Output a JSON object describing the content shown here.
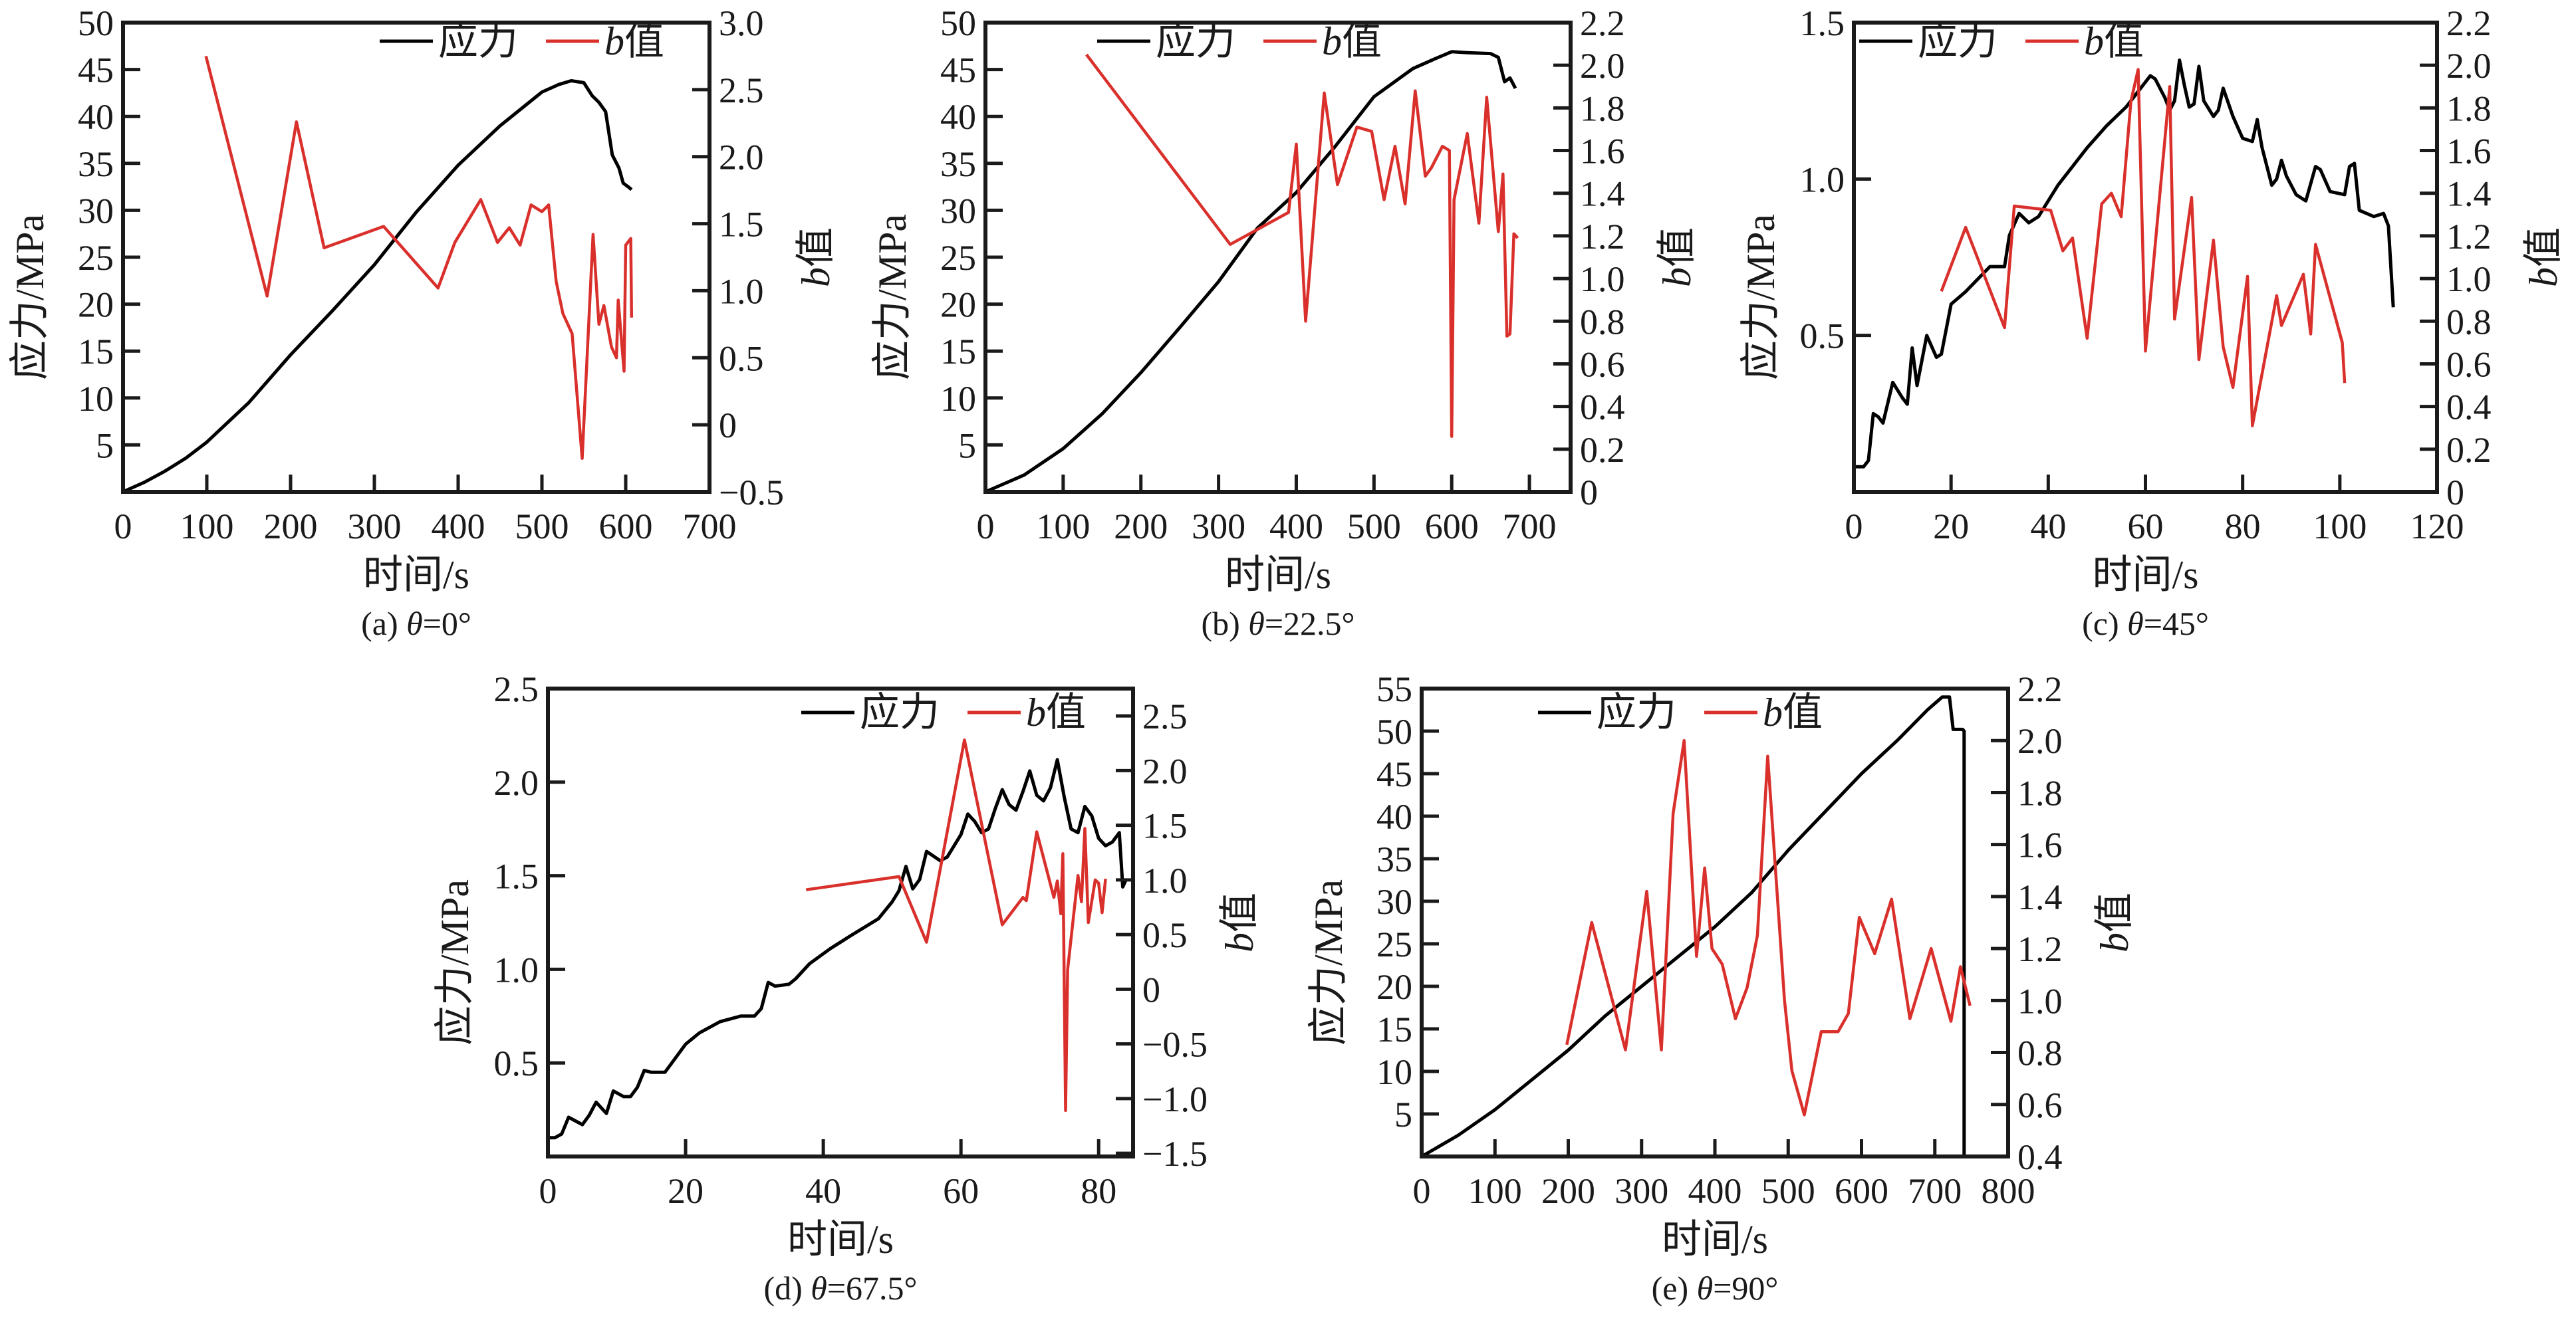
{
  "chart_data": [
    {
      "type": "line",
      "caption": "(a) θ=0°",
      "xlabel": "时间/s",
      "ylabel": "应力/MPa",
      "y2label": "b值",
      "xlim": [
        0,
        700
      ],
      "ylim": [
        0,
        50
      ],
      "y2lim": [
        -0.5,
        3.0
      ],
      "xticks": [
        0,
        100,
        200,
        300,
        400,
        500,
        600,
        700
      ],
      "xtick_labels": [
        "0",
        "100",
        "200",
        "300",
        "400",
        "500",
        "600",
        "700"
      ],
      "yticks": [
        5,
        10,
        15,
        20,
        25,
        30,
        35,
        40,
        45,
        50
      ],
      "ytick_labels": [
        "5",
        "10",
        "15",
        "20",
        "25",
        "30",
        "35",
        "40",
        "45",
        "50"
      ],
      "y2ticks": [
        -0.5,
        0,
        0.5,
        1.0,
        1.5,
        2.0,
        2.5,
        3.0
      ],
      "y2tick_labels": [
        "−0.5",
        "0",
        "0.5",
        "1.0",
        "1.5",
        "2.0",
        "2.5",
        "3.0"
      ],
      "legend": "top-right",
      "series": [
        {
          "name": "应力",
          "axis": "left",
          "color": "#000000",
          "x": [
            0,
            25,
            50,
            75,
            100,
            150,
            200,
            250,
            300,
            350,
            400,
            450,
            500,
            520,
            535,
            550,
            560,
            568,
            576,
            584,
            592,
            597,
            603,
            607
          ],
          "y": [
            0,
            1,
            2.2,
            3.6,
            5.3,
            9.5,
            14.6,
            19.3,
            24.2,
            29.8,
            34.8,
            39.0,
            42.6,
            43.4,
            43.8,
            43.6,
            42.2,
            41.5,
            40.5,
            35.9,
            34.5,
            32.9,
            32.5,
            32.2
          ]
        },
        {
          "name": "b值",
          "axis": "right",
          "color": "#d9302c",
          "x": [
            99,
            172,
            207,
            240,
            311,
            376,
            396,
            427,
            447,
            461,
            474,
            487,
            500,
            508,
            517,
            525,
            536,
            548,
            561,
            568,
            574,
            583,
            589,
            591,
            598,
            600,
            606,
            607
          ],
          "y": [
            2.75,
            0.96,
            2.26,
            1.32,
            1.48,
            1.02,
            1.36,
            1.68,
            1.36,
            1.47,
            1.34,
            1.64,
            1.59,
            1.64,
            1.07,
            0.83,
            0.68,
            -0.25,
            1.42,
            0.75,
            0.89,
            0.58,
            0.5,
            0.93,
            0.4,
            1.34,
            1.39,
            0.8
          ]
        }
      ]
    },
    {
      "type": "line",
      "caption": "(b) θ=22.5°",
      "xlabel": "时间/s",
      "ylabel": "应力/MPa",
      "y2label": "b值",
      "xlim": [
        0,
        753
      ],
      "ylim": [
        0,
        50
      ],
      "y2lim": [
        0,
        2.2
      ],
      "xticks": [
        0,
        100,
        200,
        300,
        400,
        500,
        600,
        700
      ],
      "xtick_labels": [
        "0",
        "100",
        "200",
        "300",
        "400",
        "500",
        "600",
        "700"
      ],
      "yticks": [
        5,
        10,
        15,
        20,
        25,
        30,
        35,
        40,
        45,
        50
      ],
      "ytick_labels": [
        "5",
        "10",
        "15",
        "20",
        "25",
        "30",
        "35",
        "40",
        "45",
        "50"
      ],
      "y2ticks": [
        0,
        0.2,
        0.4,
        0.6,
        0.8,
        1.0,
        1.2,
        1.4,
        1.6,
        1.8,
        2.0,
        2.2
      ],
      "y2tick_labels": [
        "0",
        "0.2",
        "0.4",
        "0.6",
        "0.8",
        "1.0",
        "1.2",
        "1.4",
        "1.6",
        "1.8",
        "2.0",
        "2.2"
      ],
      "legend": "top-center",
      "series": [
        {
          "name": "应力",
          "axis": "left",
          "color": "#000000",
          "x": [
            0,
            50,
            100,
            150,
            200,
            250,
            300,
            350,
            400,
            450,
            500,
            550,
            580,
            600,
            620,
            650,
            660,
            668,
            675,
            682
          ],
          "y": [
            0,
            1.8,
            4.6,
            8.3,
            12.7,
            17.5,
            22.4,
            28.1,
            31.9,
            36.8,
            42.1,
            45.1,
            46.2,
            46.9,
            46.8,
            46.7,
            46.3,
            43.7,
            44.1,
            43.0
          ]
        },
        {
          "name": "b值",
          "axis": "right",
          "color": "#d9302c",
          "x": [
            130,
            315,
            390,
            400,
            412,
            436,
            453,
            478,
            497,
            513,
            527,
            540,
            553,
            566,
            574,
            588,
            597,
            600,
            603,
            620,
            635,
            645,
            660,
            666,
            671,
            675,
            680,
            685
          ],
          "y": [
            2.05,
            1.16,
            1.31,
            1.63,
            0.8,
            1.87,
            1.44,
            1.71,
            1.69,
            1.37,
            1.62,
            1.35,
            1.88,
            1.48,
            1.52,
            1.62,
            1.6,
            0.26,
            1.37,
            1.68,
            1.26,
            1.85,
            1.22,
            1.49,
            0.73,
            0.74,
            1.21,
            1.19
          ]
        }
      ]
    },
    {
      "type": "line",
      "caption": "(c) θ=45°",
      "xlabel": "时间/s",
      "ylabel": "应力/MPa",
      "y2label": "b值",
      "xlim": [
        0,
        120
      ],
      "ylim": [
        0,
        1.5
      ],
      "y2lim": [
        0,
        2.2
      ],
      "xticks": [
        0,
        20,
        40,
        60,
        80,
        100,
        120
      ],
      "xtick_labels": [
        "0",
        "20",
        "40",
        "60",
        "80",
        "100",
        "120"
      ],
      "yticks": [
        0.5,
        1.0,
        1.5
      ],
      "ytick_labels": [
        "0.5",
        "1.0",
        "1.5"
      ],
      "y2ticks": [
        0,
        0.2,
        0.4,
        0.6,
        0.8,
        1.0,
        1.2,
        1.4,
        1.6,
        1.8,
        2.0,
        2.2
      ],
      "y2tick_labels": [
        "0",
        "0.2",
        "0.4",
        "0.6",
        "0.8",
        "1.0",
        "1.2",
        "1.4",
        "1.6",
        "1.8",
        "2.0",
        "2.2"
      ],
      "legend": "top-left",
      "series": [
        {
          "name": "应力",
          "axis": "left",
          "color": "#000000",
          "x": [
            0,
            2,
            3,
            4,
            5,
            6,
            8,
            10,
            11,
            12,
            13,
            15,
            17,
            18,
            20,
            23,
            28,
            31,
            32,
            34,
            36,
            38,
            42,
            48,
            52,
            56,
            58,
            61,
            62,
            64,
            65,
            66,
            67,
            68,
            69,
            70,
            71,
            72,
            74,
            75,
            76,
            78,
            80,
            82,
            83,
            84,
            86,
            87,
            88,
            89,
            91,
            93,
            95,
            96,
            98,
            101,
            102,
            103,
            104,
            107,
            109,
            110,
            111
          ],
          "y": [
            0.08,
            0.08,
            0.1,
            0.25,
            0.24,
            0.22,
            0.35,
            0.3,
            0.28,
            0.46,
            0.34,
            0.5,
            0.43,
            0.44,
            0.6,
            0.64,
            0.72,
            0.72,
            0.82,
            0.89,
            0.86,
            0.88,
            0.98,
            1.1,
            1.17,
            1.23,
            1.27,
            1.33,
            1.32,
            1.26,
            1.22,
            1.25,
            1.38,
            1.3,
            1.23,
            1.24,
            1.36,
            1.25,
            1.2,
            1.22,
            1.29,
            1.2,
            1.13,
            1.12,
            1.19,
            1.1,
            0.98,
            1.0,
            1.06,
            1.01,
            0.95,
            0.93,
            1.04,
            1.03,
            0.96,
            0.95,
            1.04,
            1.05,
            0.9,
            0.88,
            0.89,
            0.85,
            0.59
          ]
        },
        {
          "name": "b值",
          "axis": "right",
          "color": "#d9302c",
          "x": [
            18,
            23,
            31,
            33,
            40.5,
            43,
            45,
            48,
            51,
            53,
            55,
            57,
            58.5,
            60,
            65,
            66,
            69.5,
            71,
            74,
            76,
            78,
            81,
            82,
            87,
            88,
            92.5,
            94,
            95,
            100.5,
            101
          ],
          "y": [
            0.94,
            1.24,
            0.77,
            1.34,
            1.32,
            1.13,
            1.19,
            0.72,
            1.35,
            1.4,
            1.29,
            1.83,
            1.98,
            0.66,
            1.9,
            0.81,
            1.38,
            0.62,
            1.18,
            0.68,
            0.49,
            1.01,
            0.31,
            0.92,
            0.78,
            1.02,
            0.74,
            1.16,
            0.7,
            0.51
          ]
        }
      ]
    },
    {
      "type": "line",
      "caption": "(d) θ=67.5°",
      "xlabel": "时间/s",
      "ylabel": "应力/MPa",
      "y2label": "b值",
      "xlim": [
        0,
        85
      ],
      "ylim": [
        0,
        2.5
      ],
      "y2lim": [
        -1.53,
        2.75
      ],
      "xticks": [
        0,
        20,
        40,
        60,
        80
      ],
      "xtick_labels": [
        "0",
        "20",
        "40",
        "60",
        "80"
      ],
      "yticks": [
        0.5,
        1.0,
        1.5,
        2.0,
        2.5
      ],
      "ytick_labels": [
        "0.5",
        "1.0",
        "1.5",
        "2.0",
        "2.5"
      ],
      "y2ticks": [
        -1.5,
        -1.0,
        -0.5,
        0,
        0.5,
        1.0,
        1.5,
        2.0,
        2.5
      ],
      "y2tick_labels": [
        "−1.5",
        "−1.0",
        "−0.5",
        "0",
        "0.5",
        "1.0",
        "1.5",
        "2.0",
        "2.5"
      ],
      "legend": "top-right",
      "series": [
        {
          "name": "应力",
          "axis": "left",
          "color": "#000000",
          "x": [
            0,
            1,
            2,
            3,
            4,
            5,
            6,
            7,
            8,
            8.5,
            9.5,
            11,
            12,
            13,
            14,
            15,
            17,
            18,
            20,
            22,
            25,
            28,
            30,
            31,
            32,
            33,
            35,
            36,
            38,
            41,
            44,
            48,
            50,
            51,
            52,
            53,
            54,
            55,
            57,
            58,
            60,
            61,
            62,
            63,
            64,
            65,
            66,
            67,
            68,
            69,
            70,
            71,
            72,
            73,
            74,
            75,
            76,
            77,
            78,
            79,
            80,
            81,
            82,
            83,
            83.5,
            84
          ],
          "y": [
            0.1,
            0.1,
            0.12,
            0.21,
            0.19,
            0.17,
            0.22,
            0.29,
            0.25,
            0.23,
            0.35,
            0.32,
            0.32,
            0.37,
            0.46,
            0.45,
            0.45,
            0.5,
            0.6,
            0.66,
            0.72,
            0.75,
            0.75,
            0.79,
            0.93,
            0.91,
            0.92,
            0.95,
            1.03,
            1.11,
            1.18,
            1.27,
            1.36,
            1.42,
            1.55,
            1.43,
            1.48,
            1.63,
            1.58,
            1.6,
            1.72,
            1.83,
            1.79,
            1.73,
            1.75,
            1.86,
            1.96,
            1.88,
            1.85,
            1.95,
            2.06,
            1.93,
            1.9,
            1.97,
            2.12,
            1.92,
            1.75,
            1.73,
            1.87,
            1.82,
            1.7,
            1.66,
            1.68,
            1.73,
            1.44,
            1.48
          ]
        },
        {
          "name": "b值",
          "axis": "right",
          "color": "#d9302c",
          "x": [
            37.5,
            51,
            55,
            60.5,
            66,
            69,
            69.5,
            71,
            73.5,
            74,
            74.5,
            74.8,
            75.2,
            75.5,
            77,
            77.5,
            78,
            78.5,
            79.5,
            80,
            80.5,
            81
          ],
          "y": [
            0.91,
            1.03,
            0.43,
            2.28,
            0.59,
            0.84,
            0.81,
            1.44,
            0.84,
            0.99,
            0.69,
            1.24,
            -1.11,
            0.18,
            1.04,
            0.8,
            1.47,
            0.61,
            1.0,
            0.97,
            0.7,
            1.01
          ]
        }
      ]
    },
    {
      "type": "line",
      "caption": "(e) θ=90°",
      "xlabel": "时间/s",
      "ylabel": "应力/MPa",
      "y2label": "b值",
      "xlim": [
        0,
        800
      ],
      "ylim": [
        0,
        55
      ],
      "y2lim": [
        0.4,
        2.2
      ],
      "xticks": [
        0,
        100,
        200,
        300,
        400,
        500,
        600,
        700,
        800
      ],
      "xtick_labels": [
        "0",
        "100",
        "200",
        "300",
        "400",
        "500",
        "600",
        "700",
        "800"
      ],
      "yticks": [
        5,
        10,
        15,
        20,
        25,
        30,
        35,
        40,
        45,
        50,
        55
      ],
      "ytick_labels": [
        "5",
        "10",
        "15",
        "20",
        "25",
        "30",
        "35",
        "40",
        "45",
        "50",
        "55"
      ],
      "y2ticks": [
        0.4,
        0.6,
        0.8,
        1.0,
        1.2,
        1.4,
        1.6,
        1.8,
        2.0,
        2.2
      ],
      "y2tick_labels": [
        "0.4",
        "0.6",
        "0.8",
        "1.0",
        "1.2",
        "1.4",
        "1.6",
        "1.8",
        "2.0",
        "2.2"
      ],
      "legend": "top-center",
      "series": [
        {
          "name": "应力",
          "axis": "left",
          "color": "#000000",
          "x": [
            0,
            50,
            100,
            150,
            200,
            250,
            300,
            350,
            400,
            450,
            500,
            550,
            600,
            650,
            690,
            710,
            720,
            725,
            738,
            740,
            740
          ],
          "y": [
            0,
            2.5,
            5.5,
            9,
            12.5,
            16.5,
            20,
            23.5,
            27,
            31,
            36,
            40.5,
            45,
            49,
            52.5,
            54,
            54,
            50.2,
            50.2,
            50,
            0
          ]
        },
        {
          "name": "b值",
          "axis": "right",
          "color": "#d9302c",
          "x": [
            198,
            232,
            278,
            307,
            327,
            343,
            358,
            375,
            386,
            396,
            410,
            428,
            444,
            458,
            472,
            495,
            505,
            522,
            545,
            568,
            582,
            597,
            618,
            641,
            666,
            695,
            722,
            735,
            748
          ],
          "y": [
            0.83,
            1.3,
            0.81,
            1.42,
            0.81,
            1.72,
            2.0,
            1.17,
            1.51,
            1.2,
            1.14,
            0.93,
            1.05,
            1.25,
            1.94,
            1.0,
            0.73,
            0.56,
            0.88,
            0.88,
            0.95,
            1.32,
            1.18,
            1.39,
            0.93,
            1.2,
            0.92,
            1.13,
            0.98
          ]
        }
      ]
    }
  ]
}
